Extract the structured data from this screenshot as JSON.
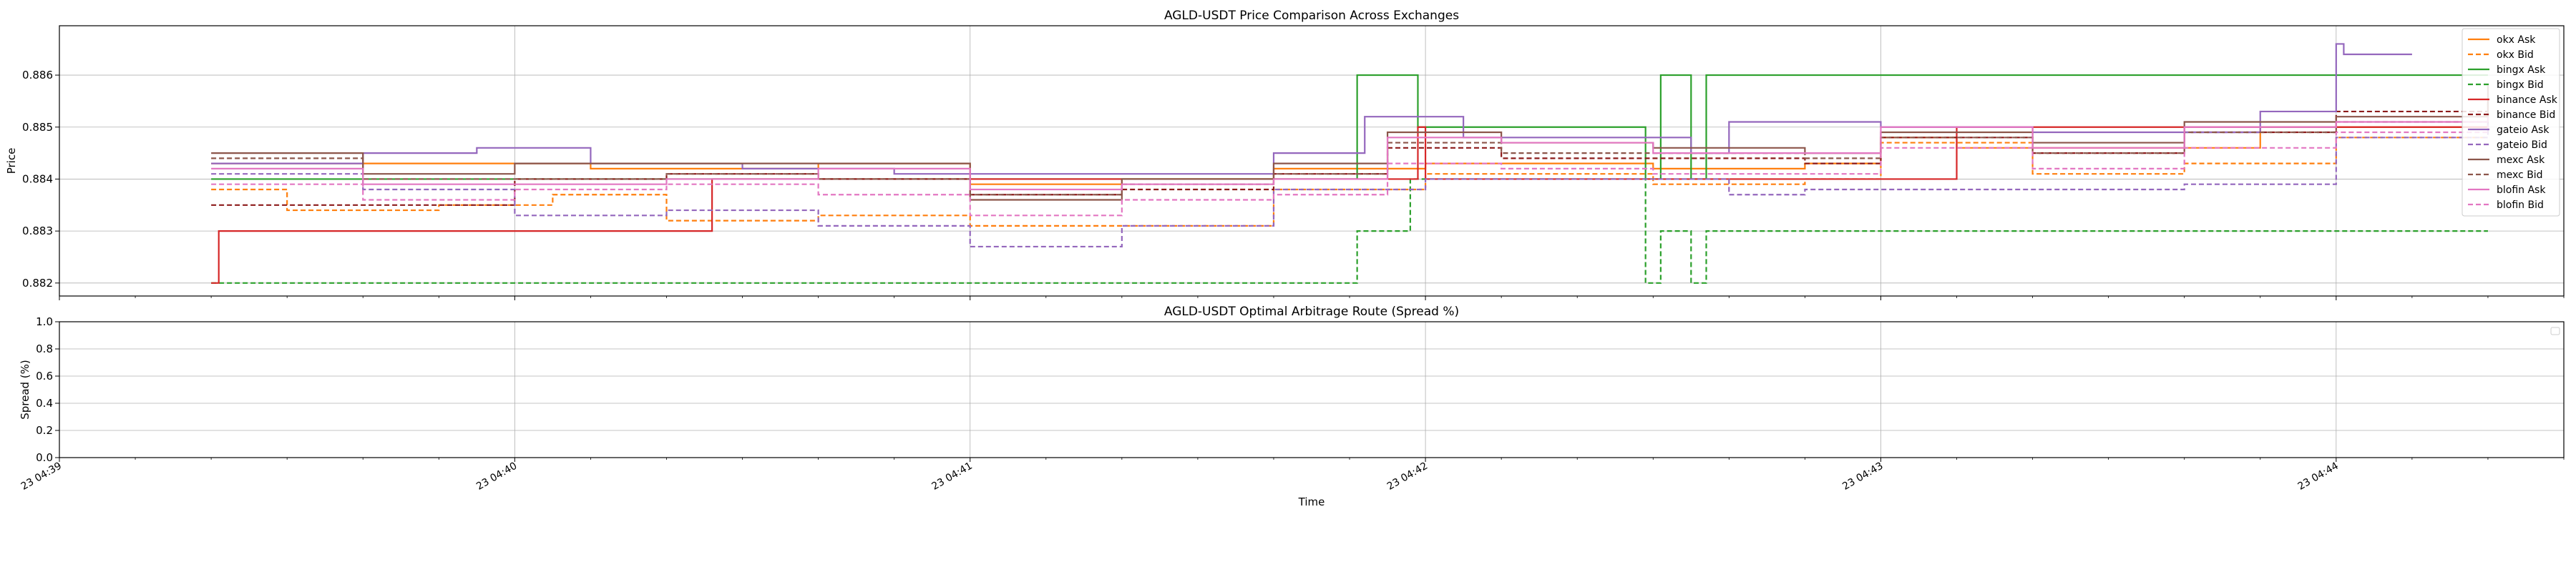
{
  "chart_data": [
    {
      "type": "line",
      "title": "AGLD-USDT Price Comparison Across Exchanges",
      "xlabel": "",
      "ylabel": "Price",
      "xlim": [
        "23 04:39:00",
        "23 04:44:30"
      ],
      "ylim": [
        0.88175,
        0.88695
      ],
      "yticks": [
        0.882,
        0.883,
        0.884,
        0.885,
        0.886
      ],
      "ytick_labels": [
        "0.882",
        "0.883",
        "0.884",
        "0.885",
        "0.886"
      ],
      "grid": true,
      "legend_position": "right",
      "series": [
        {
          "name": "okx Ask",
          "color": "#ff7f0e",
          "dash": false,
          "points": [
            [
              "04:39:20",
              0.8843
            ],
            [
              "04:39:50",
              0.8843
            ],
            [
              "04:40:10",
              0.8842
            ],
            [
              "04:40:40",
              0.8843
            ],
            [
              "04:41:00",
              0.8839
            ],
            [
              "04:41:20",
              0.884
            ],
            [
              "04:41:40",
              0.8842
            ],
            [
              "04:42:00",
              0.8843
            ],
            [
              "04:42:30",
              0.8842
            ],
            [
              "04:42:50",
              0.8843
            ],
            [
              "04:43:00",
              0.8848
            ],
            [
              "04:43:10",
              0.8846
            ],
            [
              "04:43:35",
              0.8846
            ],
            [
              "04:43:50",
              0.885
            ],
            [
              "04:44:00",
              0.885
            ],
            [
              "04:44:20",
              0.885
            ]
          ]
        },
        {
          "name": "okx Bid",
          "color": "#ff7f0e",
          "dash": true,
          "points": [
            [
              "04:39:20",
              0.8838
            ],
            [
              "04:39:30",
              0.8834
            ],
            [
              "04:39:50",
              0.8835
            ],
            [
              "04:40:05",
              0.8837
            ],
            [
              "04:40:20",
              0.8832
            ],
            [
              "04:40:40",
              0.8833
            ],
            [
              "04:41:00",
              0.8831
            ],
            [
              "04:41:20",
              0.8831
            ],
            [
              "04:41:40",
              0.8838
            ],
            [
              "04:42:00",
              0.8841
            ],
            [
              "04:42:30",
              0.8839
            ],
            [
              "04:42:50",
              0.884
            ],
            [
              "04:43:00",
              0.8847
            ],
            [
              "04:43:20",
              0.8841
            ],
            [
              "04:43:40",
              0.8843
            ],
            [
              "04:44:00",
              0.8848
            ],
            [
              "04:44:20",
              0.8848
            ]
          ]
        },
        {
          "name": "bingx Ask",
          "color": "#2ca02c",
          "dash": false,
          "points": [
            [
              "04:39:20",
              0.884
            ],
            [
              "04:41:50",
              0.884
            ],
            [
              "04:41:51",
              0.886
            ],
            [
              "04:41:58",
              0.886
            ],
            [
              "04:41:59",
              0.885
            ],
            [
              "04:42:28",
              0.885
            ],
            [
              "04:42:29",
              0.884
            ],
            [
              "04:42:30",
              0.884
            ],
            [
              "04:42:31",
              0.886
            ],
            [
              "04:42:34",
              0.886
            ],
            [
              "04:42:35",
              0.884
            ],
            [
              "04:42:36",
              0.884
            ],
            [
              "04:42:37",
              0.886
            ],
            [
              "04:44:20",
              0.886
            ]
          ]
        },
        {
          "name": "bingx Bid",
          "color": "#2ca02c",
          "dash": true,
          "points": [
            [
              "04:39:20",
              0.882
            ],
            [
              "04:41:50",
              0.882
            ],
            [
              "04:41:51",
              0.883
            ],
            [
              "04:41:57",
              0.883
            ],
            [
              "04:41:58",
              0.884
            ],
            [
              "04:42:28",
              0.884
            ],
            [
              "04:42:29",
              0.882
            ],
            [
              "04:42:30",
              0.882
            ],
            [
              "04:42:31",
              0.883
            ],
            [
              "04:42:34",
              0.883
            ],
            [
              "04:42:35",
              0.882
            ],
            [
              "04:42:36",
              0.882
            ],
            [
              "04:42:37",
              0.883
            ],
            [
              "04:44:20",
              0.883
            ]
          ]
        },
        {
          "name": "binance Ask",
          "color": "#d62728",
          "dash": false,
          "points": [
            [
              "04:39:20",
              0.882
            ],
            [
              "04:39:21",
              0.883
            ],
            [
              "04:40:25",
              0.883
            ],
            [
              "04:40:26",
              0.884
            ],
            [
              "04:41:45",
              0.884
            ],
            [
              "04:41:59",
              0.885
            ],
            [
              "04:42:00",
              0.884
            ],
            [
              "04:43:05",
              0.884
            ],
            [
              "04:43:10",
              0.885
            ],
            [
              "04:44:20",
              0.8851
            ]
          ]
        },
        {
          "name": "binance Bid",
          "color": "#8c1a1a",
          "dash": true,
          "points": [
            [
              "04:39:20",
              0.8835
            ],
            [
              "04:39:40",
              0.8835
            ],
            [
              "04:40:00",
              0.884
            ],
            [
              "04:40:20",
              0.8841
            ],
            [
              "04:40:40",
              0.884
            ],
            [
              "04:41:00",
              0.8837
            ],
            [
              "04:41:20",
              0.8838
            ],
            [
              "04:41:40",
              0.8841
            ],
            [
              "04:41:55",
              0.8846
            ],
            [
              "04:42:10",
              0.8844
            ],
            [
              "04:42:30",
              0.8844
            ],
            [
              "04:42:50",
              0.8843
            ],
            [
              "04:43:00",
              0.8848
            ],
            [
              "04:43:20",
              0.8845
            ],
            [
              "04:43:40",
              0.8849
            ],
            [
              "04:44:00",
              0.8853
            ],
            [
              "04:44:20",
              0.8855
            ]
          ]
        },
        {
          "name": "gateio Ask",
          "color": "#9467bd",
          "dash": false,
          "points": [
            [
              "04:39:20",
              0.8843
            ],
            [
              "04:39:40",
              0.8845
            ],
            [
              "04:39:55",
              0.8846
            ],
            [
              "04:40:10",
              0.8843
            ],
            [
              "04:40:30",
              0.8842
            ],
            [
              "04:40:50",
              0.8841
            ],
            [
              "04:41:10",
              0.8841
            ],
            [
              "04:41:40",
              0.8845
            ],
            [
              "04:41:52",
              0.8852
            ],
            [
              "04:42:05",
              0.8848
            ],
            [
              "04:42:35",
              0.8845
            ],
            [
              "04:42:40",
              0.8851
            ],
            [
              "04:43:00",
              0.885
            ],
            [
              "04:43:20",
              0.8849
            ],
            [
              "04:43:50",
              0.8853
            ],
            [
              "04:43:59",
              0.8853
            ],
            [
              "04:44:00",
              0.8866
            ],
            [
              "04:44:01",
              0.8864
            ],
            [
              "04:44:10",
              0.8864
            ]
          ]
        },
        {
          "name": "gateio Bid",
          "color": "#9467bd",
          "dash": true,
          "points": [
            [
              "04:39:20",
              0.8841
            ],
            [
              "04:39:40",
              0.8838
            ],
            [
              "04:40:00",
              0.8833
            ],
            [
              "04:40:20",
              0.8834
            ],
            [
              "04:40:40",
              0.8831
            ],
            [
              "04:41:00",
              0.8827
            ],
            [
              "04:41:20",
              0.8831
            ],
            [
              "04:41:40",
              0.8838
            ],
            [
              "04:42:00",
              0.884
            ],
            [
              "04:42:20",
              0.884
            ],
            [
              "04:42:40",
              0.8837
            ],
            [
              "04:42:50",
              0.8838
            ],
            [
              "04:43:00",
              0.8838
            ],
            [
              "04:43:20",
              0.8838
            ],
            [
              "04:43:40",
              0.8839
            ],
            [
              "04:44:00",
              0.8848
            ],
            [
              "04:44:20",
              0.8852
            ]
          ]
        },
        {
          "name": "mexc Ask",
          "color": "#8c564b",
          "dash": false,
          "points": [
            [
              "04:39:20",
              0.8845
            ],
            [
              "04:39:40",
              0.8841
            ],
            [
              "04:40:00",
              0.8843
            ],
            [
              "04:40:20",
              0.8843
            ],
            [
              "04:40:40",
              0.8843
            ],
            [
              "04:41:00",
              0.8836
            ],
            [
              "04:41:20",
              0.884
            ],
            [
              "04:41:40",
              0.8843
            ],
            [
              "04:41:55",
              0.8849
            ],
            [
              "04:42:10",
              0.8847
            ],
            [
              "04:42:30",
              0.8846
            ],
            [
              "04:42:50",
              0.8845
            ],
            [
              "04:43:00",
              0.8849
            ],
            [
              "04:43:20",
              0.8847
            ],
            [
              "04:43:40",
              0.8851
            ],
            [
              "04:44:00",
              0.8852
            ],
            [
              "04:44:20",
              0.8858
            ]
          ]
        },
        {
          "name": "mexc Bid",
          "color": "#8c564b",
          "dash": true,
          "points": [
            [
              "04:39:20",
              0.8844
            ],
            [
              "04:39:40",
              0.884
            ],
            [
              "04:40:00",
              0.884
            ],
            [
              "04:40:20",
              0.8841
            ],
            [
              "04:40:40",
              0.884
            ],
            [
              "04:41:00",
              0.8837
            ],
            [
              "04:41:20",
              0.8839
            ],
            [
              "04:41:40",
              0.8841
            ],
            [
              "04:41:55",
              0.8847
            ],
            [
              "04:42:10",
              0.8845
            ],
            [
              "04:42:30",
              0.8845
            ],
            [
              "04:42:50",
              0.8844
            ],
            [
              "04:43:00",
              0.8848
            ],
            [
              "04:43:20",
              0.8845
            ],
            [
              "04:43:40",
              0.8849
            ],
            [
              "04:44:00",
              0.8851
            ],
            [
              "04:44:20",
              0.8855
            ]
          ]
        },
        {
          "name": "blofin Ask",
          "color": "#e377c2",
          "dash": false,
          "points": [
            [
              "04:39:20",
              0.8842
            ],
            [
              "04:39:40",
              0.8839
            ],
            [
              "04:40:00",
              0.8839
            ],
            [
              "04:40:20",
              0.884
            ],
            [
              "04:40:40",
              0.8842
            ],
            [
              "04:41:00",
              0.8838
            ],
            [
              "04:41:20",
              0.8839
            ],
            [
              "04:41:40",
              0.884
            ],
            [
              "04:41:55",
              0.8848
            ],
            [
              "04:42:10",
              0.8847
            ],
            [
              "04:42:30",
              0.8845
            ],
            [
              "04:42:50",
              0.8845
            ],
            [
              "04:43:00",
              0.885
            ],
            [
              "04:43:20",
              0.8846
            ],
            [
              "04:43:40",
              0.885
            ],
            [
              "04:44:00",
              0.8851
            ],
            [
              "04:44:20",
              0.8851
            ]
          ]
        },
        {
          "name": "blofin Bid",
          "color": "#e377c2",
          "dash": true,
          "points": [
            [
              "04:39:20",
              0.8839
            ],
            [
              "04:39:40",
              0.8836
            ],
            [
              "04:40:00",
              0.8838
            ],
            [
              "04:40:20",
              0.8839
            ],
            [
              "04:40:40",
              0.8837
            ],
            [
              "04:41:00",
              0.8833
            ],
            [
              "04:41:20",
              0.8836
            ],
            [
              "04:41:40",
              0.8837
            ],
            [
              "04:41:55",
              0.8843
            ],
            [
              "04:42:10",
              0.8842
            ],
            [
              "04:42:30",
              0.8841
            ],
            [
              "04:42:50",
              0.8841
            ],
            [
              "04:43:00",
              0.8846
            ],
            [
              "04:43:20",
              0.8842
            ],
            [
              "04:43:40",
              0.8846
            ],
            [
              "04:44:00",
              0.8849
            ],
            [
              "04:44:20",
              0.8852
            ]
          ]
        }
      ]
    },
    {
      "type": "line",
      "title": "AGLD-USDT Optimal Arbitrage Route (Spread %)",
      "xlabel": "Time",
      "ylabel": "Spread (%)",
      "xlim": [
        "23 04:39:00",
        "23 04:44:30"
      ],
      "ylim": [
        0.0,
        1.0
      ],
      "yticks": [
        0.0,
        0.2,
        0.4,
        0.6,
        0.8,
        1.0
      ],
      "ytick_labels": [
        "0.0",
        "0.2",
        "0.4",
        "0.6",
        "0.8",
        "1.0"
      ],
      "xticks": [
        "04:39",
        "04:40",
        "04:41",
        "04:42",
        "04:43",
        "04:44"
      ],
      "xtick_labels": [
        "23 04:39",
        "23 04:40",
        "23 04:41",
        "23 04:42",
        "23 04:43",
        "23 04:44"
      ],
      "grid": true,
      "legend_position": "top-right",
      "series": []
    }
  ]
}
